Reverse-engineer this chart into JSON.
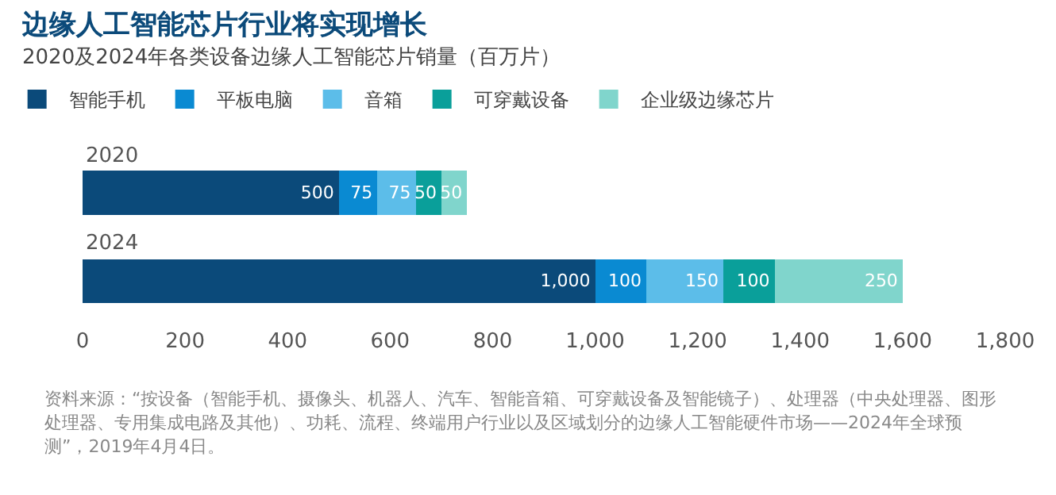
{
  "chart_data": {
    "type": "bar",
    "orientation": "horizontal",
    "stacked": true,
    "title": "边缘人工智能芯片行业将实现增长",
    "subtitle": "2020及2024年各类设备边缘人工智能芯片销量（百万片）",
    "categories": [
      "2020",
      "2024"
    ],
    "series": [
      {
        "name": "智能手机",
        "color": "#0b4a7a",
        "values": [
          500,
          1000
        ],
        "value_labels": [
          "500",
          "1,000"
        ]
      },
      {
        "name": "平板电脑",
        "color": "#0a8ad2",
        "values": [
          75,
          100
        ],
        "value_labels": [
          "75",
          "100"
        ]
      },
      {
        "name": "音箱",
        "color": "#5cbde9",
        "values": [
          75,
          150
        ],
        "value_labels": [
          "75",
          "150"
        ]
      },
      {
        "name": "可穿戴设备",
        "color": "#0a9f9a",
        "values": [
          50,
          100
        ],
        "value_labels": [
          "50",
          "100"
        ]
      },
      {
        "name": "企业级边缘芯片",
        "color": "#80d5cc",
        "values": [
          50,
          250
        ],
        "value_labels": [
          "50",
          "250"
        ]
      }
    ],
    "legend": "top left",
    "grid": false,
    "xlim": [
      0,
      1800
    ],
    "xticks": [
      0,
      200,
      400,
      600,
      800,
      {
        "value": 1000,
        "label": "1,000"
      },
      {
        "value": 1200,
        "label": "1,200"
      },
      {
        "value": 1400,
        "label": "1,400"
      },
      {
        "value": 1600,
        "label": "1,600"
      },
      {
        "value": 1800,
        "label": "1,800"
      }
    ],
    "tick_labels": "x",
    "annotations": [
      "资料来源：“按设备（智能手机、摄像头、机器人、汽车、智能音箱、可穿戴设备及智能镜子）、处理器（中央处理器、图形处理器、专用集成电路及其他）、功耗、流程、终端用户行业以及区域划分的边缘人工智能硬件市场——2024年全球预测”，2019年4月4日。"
    ]
  }
}
